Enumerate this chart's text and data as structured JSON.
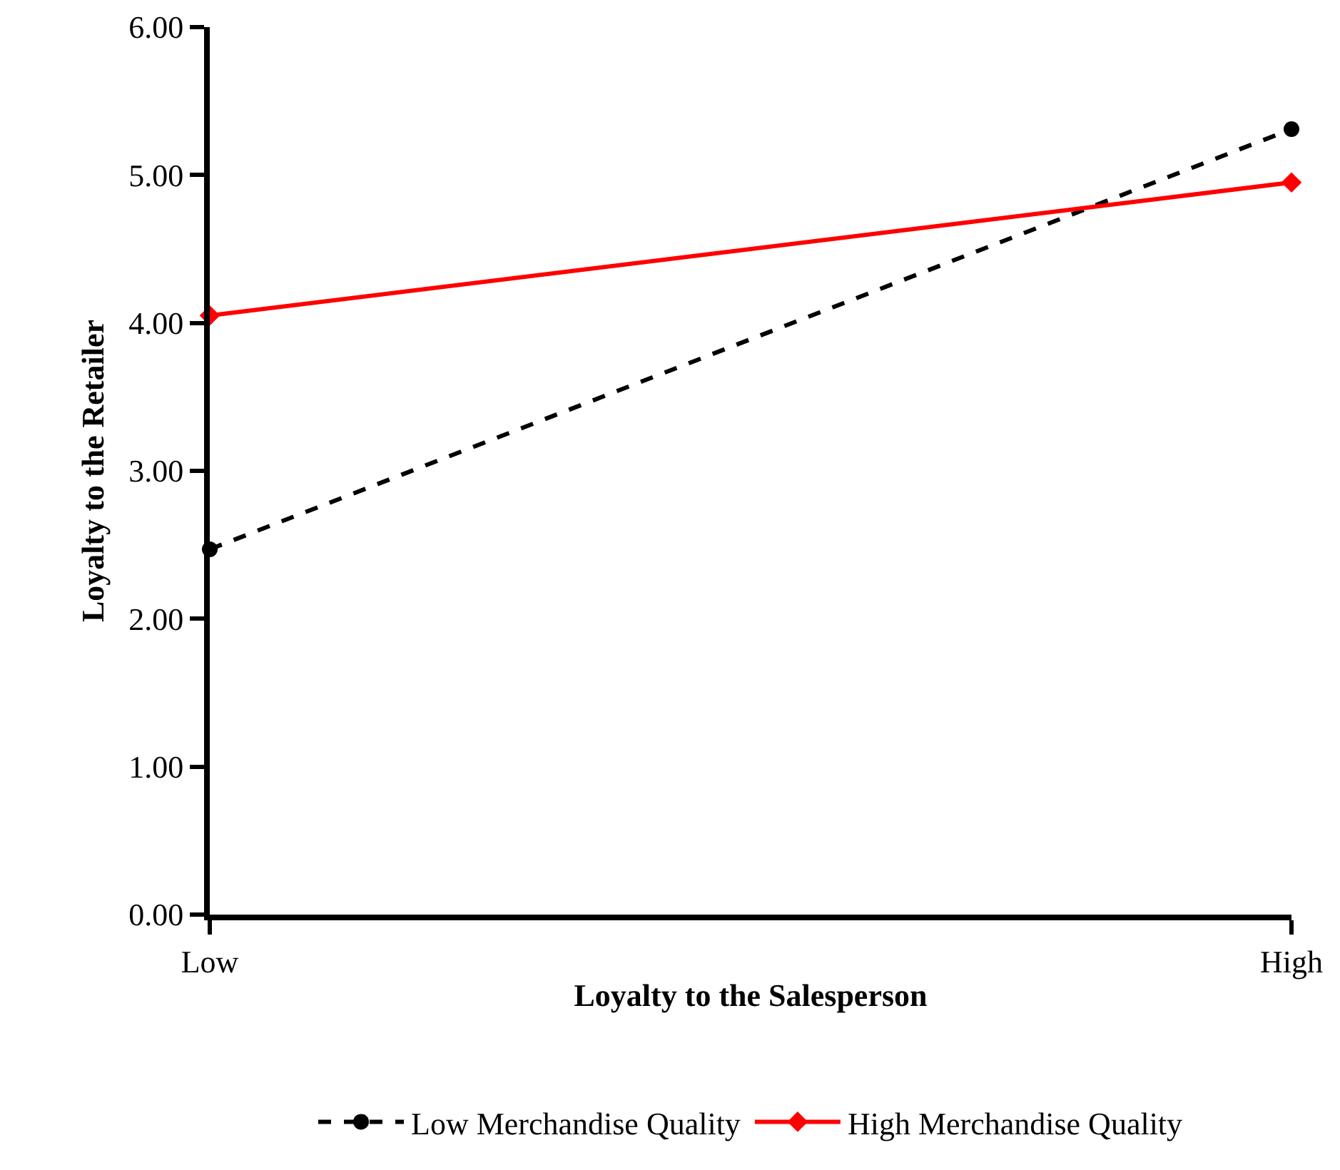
{
  "chart_data": {
    "type": "line",
    "xlabel": "Loyalty to the Salesperson",
    "ylabel": "Loyalty to the Retailer",
    "categories": [
      "Low",
      "High"
    ],
    "series": [
      {
        "name": "Low Merchandise Quality",
        "color": "#000000",
        "values": [
          2.47,
          5.31
        ],
        "marker": "circle",
        "line_style": "dashed"
      },
      {
        "name": "High Merchandise Quality",
        "color": "#ff0000",
        "values": [
          4.05,
          4.95
        ],
        "marker": "diamond",
        "line_style": "solid"
      }
    ],
    "ylim": [
      0,
      6
    ],
    "yticks": [
      {
        "value": 0,
        "label": "0.00"
      },
      {
        "value": 1,
        "label": "1.00"
      },
      {
        "value": 2,
        "label": "2.00"
      },
      {
        "value": 3,
        "label": "3.00"
      },
      {
        "value": 4,
        "label": "4.00"
      },
      {
        "value": 5,
        "label": "5.00"
      },
      {
        "value": 6,
        "label": "6.00"
      }
    ],
    "grid": false,
    "legend": "bottom"
  }
}
